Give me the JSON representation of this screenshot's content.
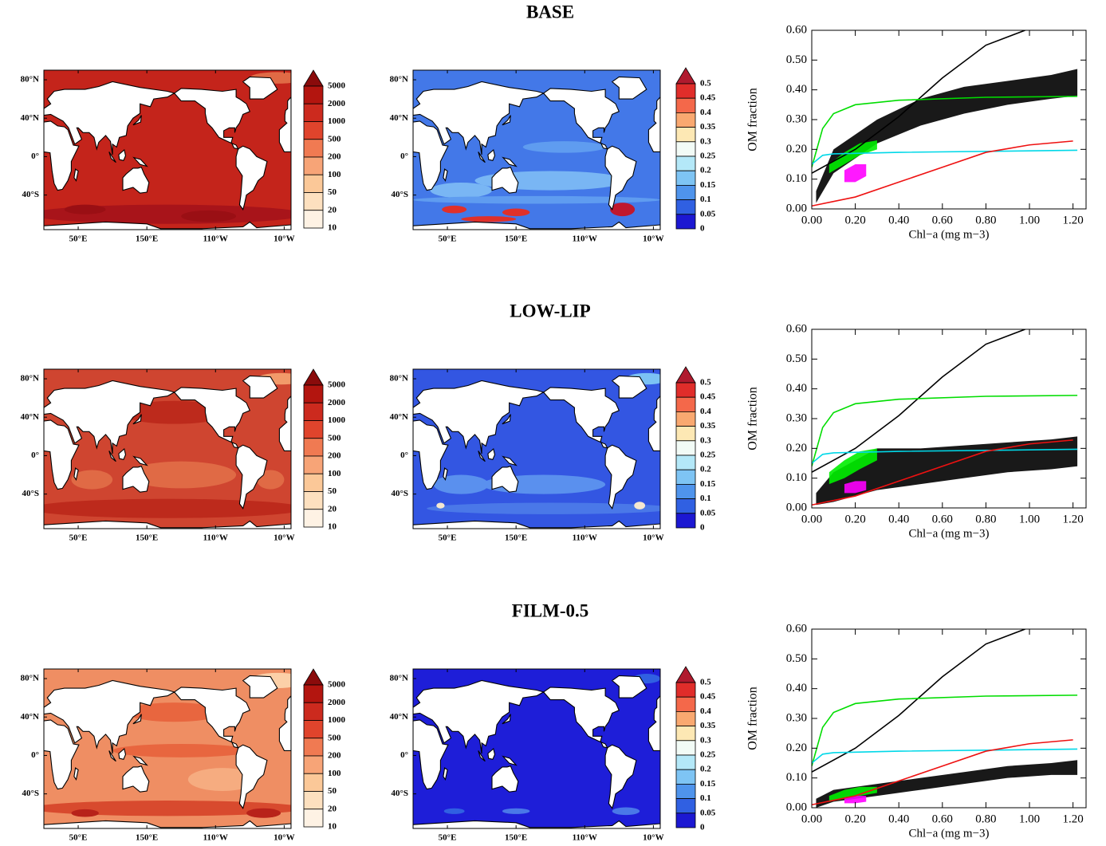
{
  "map_axes": {
    "lat_labels": [
      "80°N",
      "40°N",
      "0°",
      "40°S"
    ],
    "lon_labels": [
      "50°E",
      "150°E",
      "110°W",
      "10°W"
    ]
  },
  "colorbars": [
    {
      "labels": [
        5000,
        2000,
        1000,
        500,
        200,
        100,
        50,
        20,
        10
      ],
      "colors": [
        "#b3150f",
        "#cc2a1e",
        "#e0442c",
        "#f07a52",
        "#f7a477",
        "#fbc898",
        "#fde0bf",
        "#fef2e4"
      ],
      "extend_color": "#8a0b0b"
    },
    {
      "labels": [
        0.5,
        0.45,
        0.4,
        0.35,
        0.3,
        0.25,
        0.2,
        0.15,
        0.1,
        0.05,
        0
      ],
      "colors": [
        "#e02d2a",
        "#f4684a",
        "#f9a870",
        "#fde8b4",
        "#f2fbf6",
        "#b4e8f8",
        "#7ec4f4",
        "#4f94ec",
        "#3060e2",
        "#1c18d2"
      ],
      "extend_color": "#b01a2e"
    }
  ],
  "chart_data": [
    {
      "type": "line",
      "title": "BASE",
      "xlabel": "Chl−a (mg m−3)",
      "ylabel": "OM fraction",
      "xlim": [
        0,
        1.26
      ],
      "ylim": [
        0,
        0.6
      ],
      "xticks": [
        {
          "value": 0,
          "label": "0.00"
        },
        {
          "value": 0.2,
          "label": "0.20"
        },
        {
          "value": 0.4,
          "label": "0.40"
        },
        {
          "value": 0.6,
          "label": "0.60"
        },
        {
          "value": 0.8,
          "label": "0.80"
        },
        {
          "value": 1.0,
          "label": "1.00"
        },
        {
          "value": 1.2,
          "label": "1.20"
        }
      ],
      "yticks": [
        {
          "value": 0,
          "label": "0.00"
        },
        {
          "value": 0.1,
          "label": "0.10"
        },
        {
          "value": 0.2,
          "label": "0.20"
        },
        {
          "value": 0.3,
          "label": "0.30"
        },
        {
          "value": 0.4,
          "label": "0.40"
        },
        {
          "value": 0.5,
          "label": "0.50"
        },
        {
          "value": 0.6,
          "label": "0.60"
        }
      ],
      "clouds": [
        {
          "color": "#000000",
          "x": [
            0.02,
            0.1,
            0.3,
            0.5,
            0.7,
            0.9,
            1.1,
            1.22
          ],
          "lower": [
            0.02,
            0.12,
            0.22,
            0.28,
            0.32,
            0.35,
            0.37,
            0.38
          ],
          "upper": [
            0.06,
            0.2,
            0.3,
            0.37,
            0.41,
            0.43,
            0.45,
            0.47
          ]
        },
        {
          "color": "#00ee00",
          "x": [
            0.08,
            0.15,
            0.22,
            0.3
          ],
          "lower": [
            0.12,
            0.15,
            0.18,
            0.2
          ],
          "upper": [
            0.15,
            0.19,
            0.22,
            0.23
          ]
        },
        {
          "color": "#ff00ff",
          "x": [
            0.15,
            0.2,
            0.25
          ],
          "lower": [
            0.09,
            0.09,
            0.11
          ],
          "upper": [
            0.13,
            0.15,
            0.15
          ]
        }
      ],
      "series": [
        {
          "color": "#000000",
          "x": [
            0,
            0.2,
            0.4,
            0.6,
            0.8,
            0.98
          ],
          "values": [
            0.12,
            0.2,
            0.31,
            0.44,
            0.55,
            0.6
          ]
        },
        {
          "color": "#00dd00",
          "x": [
            0,
            0.05,
            0.1,
            0.2,
            0.4,
            0.8,
            1.22
          ],
          "values": [
            0.14,
            0.27,
            0.32,
            0.35,
            0.365,
            0.375,
            0.378
          ]
        },
        {
          "color": "#00d8e8",
          "x": [
            0,
            0.05,
            0.1,
            0.4,
            1.22
          ],
          "values": [
            0.15,
            0.18,
            0.185,
            0.19,
            0.197
          ]
        },
        {
          "color": "#ee1111",
          "x": [
            0,
            0.2,
            0.4,
            0.6,
            0.8,
            1.0,
            1.2
          ],
          "values": [
            0.01,
            0.04,
            0.09,
            0.14,
            0.19,
            0.215,
            0.228
          ]
        }
      ]
    },
    {
      "type": "line",
      "title": "LOW-LIP",
      "xlabel": "Chl−a (mg m−3)",
      "ylabel": "OM fraction",
      "xlim": [
        0,
        1.26
      ],
      "ylim": [
        0,
        0.6
      ],
      "xticks": [
        {
          "value": 0,
          "label": "0.00"
        },
        {
          "value": 0.2,
          "label": "0.20"
        },
        {
          "value": 0.4,
          "label": "0.40"
        },
        {
          "value": 0.6,
          "label": "0.60"
        },
        {
          "value": 0.8,
          "label": "0.80"
        },
        {
          "value": 1.0,
          "label": "1.00"
        },
        {
          "value": 1.2,
          "label": "1.20"
        }
      ],
      "yticks": [
        {
          "value": 0,
          "label": "0.00"
        },
        {
          "value": 0.1,
          "label": "0.10"
        },
        {
          "value": 0.2,
          "label": "0.20"
        },
        {
          "value": 0.3,
          "label": "0.30"
        },
        {
          "value": 0.4,
          "label": "0.40"
        },
        {
          "value": 0.5,
          "label": "0.50"
        },
        {
          "value": 0.6,
          "label": "0.60"
        }
      ],
      "clouds": [
        {
          "color": "#000000",
          "x": [
            0.02,
            0.1,
            0.3,
            0.5,
            0.7,
            0.9,
            1.1,
            1.22
          ],
          "lower": [
            0.01,
            0.02,
            0.06,
            0.08,
            0.1,
            0.12,
            0.13,
            0.14
          ],
          "upper": [
            0.05,
            0.12,
            0.2,
            0.2,
            0.21,
            0.22,
            0.23,
            0.24
          ]
        },
        {
          "color": "#00ee00",
          "x": [
            0.08,
            0.15,
            0.22,
            0.3
          ],
          "lower": [
            0.08,
            0.1,
            0.13,
            0.16
          ],
          "upper": [
            0.12,
            0.16,
            0.19,
            0.2
          ]
        },
        {
          "color": "#ff00ff",
          "x": [
            0.15,
            0.2,
            0.25
          ],
          "lower": [
            0.05,
            0.05,
            0.06
          ],
          "upper": [
            0.08,
            0.09,
            0.09
          ]
        }
      ],
      "series": [
        {
          "color": "#000000",
          "x": [
            0,
            0.2,
            0.4,
            0.6,
            0.8,
            0.98
          ],
          "values": [
            0.12,
            0.2,
            0.31,
            0.44,
            0.55,
            0.6
          ]
        },
        {
          "color": "#00dd00",
          "x": [
            0,
            0.05,
            0.1,
            0.2,
            0.4,
            0.8,
            1.22
          ],
          "values": [
            0.14,
            0.27,
            0.32,
            0.35,
            0.365,
            0.375,
            0.378
          ]
        },
        {
          "color": "#00d8e8",
          "x": [
            0,
            0.05,
            0.1,
            0.4,
            1.22
          ],
          "values": [
            0.15,
            0.18,
            0.185,
            0.19,
            0.197
          ]
        },
        {
          "color": "#ee1111",
          "x": [
            0,
            0.2,
            0.4,
            0.6,
            0.8,
            1.0,
            1.2
          ],
          "values": [
            0.01,
            0.04,
            0.09,
            0.14,
            0.19,
            0.215,
            0.228
          ]
        }
      ]
    },
    {
      "type": "line",
      "title": "FILM-0.5",
      "xlabel": "Chl−a (mg m−3)",
      "ylabel": "OM fraction",
      "xlim": [
        0,
        1.26
      ],
      "ylim": [
        0,
        0.6
      ],
      "xticks": [
        {
          "value": 0,
          "label": "0.00"
        },
        {
          "value": 0.2,
          "label": "0.20"
        },
        {
          "value": 0.4,
          "label": "0.40"
        },
        {
          "value": 0.6,
          "label": "0.60"
        },
        {
          "value": 0.8,
          "label": "0.80"
        },
        {
          "value": 1.0,
          "label": "1.00"
        },
        {
          "value": 1.2,
          "label": "1.20"
        }
      ],
      "yticks": [
        {
          "value": 0,
          "label": "0.00"
        },
        {
          "value": 0.1,
          "label": "0.10"
        },
        {
          "value": 0.2,
          "label": "0.20"
        },
        {
          "value": 0.3,
          "label": "0.30"
        },
        {
          "value": 0.4,
          "label": "0.40"
        },
        {
          "value": 0.5,
          "label": "0.50"
        },
        {
          "value": 0.6,
          "label": "0.60"
        }
      ],
      "clouds": [
        {
          "color": "#000000",
          "x": [
            0.02,
            0.1,
            0.3,
            0.5,
            0.7,
            0.9,
            1.1,
            1.22
          ],
          "lower": [
            0.0,
            0.02,
            0.04,
            0.06,
            0.08,
            0.1,
            0.11,
            0.11
          ],
          "upper": [
            0.03,
            0.06,
            0.08,
            0.1,
            0.12,
            0.14,
            0.15,
            0.16
          ]
        },
        {
          "color": "#00ee00",
          "x": [
            0.08,
            0.15,
            0.22,
            0.3
          ],
          "lower": [
            0.02,
            0.03,
            0.04,
            0.05
          ],
          "upper": [
            0.04,
            0.06,
            0.07,
            0.07
          ]
        },
        {
          "color": "#ff00ff",
          "x": [
            0.15,
            0.2,
            0.25
          ],
          "lower": [
            0.015,
            0.015,
            0.02
          ],
          "upper": [
            0.035,
            0.04,
            0.04
          ]
        }
      ],
      "series": [
        {
          "color": "#000000",
          "x": [
            0,
            0.2,
            0.4,
            0.6,
            0.8,
            0.98
          ],
          "values": [
            0.12,
            0.2,
            0.31,
            0.44,
            0.55,
            0.6
          ]
        },
        {
          "color": "#00dd00",
          "x": [
            0,
            0.05,
            0.1,
            0.2,
            0.4,
            0.8,
            1.22
          ],
          "values": [
            0.14,
            0.27,
            0.32,
            0.35,
            0.365,
            0.375,
            0.378
          ]
        },
        {
          "color": "#00d8e8",
          "x": [
            0,
            0.05,
            0.1,
            0.4,
            1.22
          ],
          "values": [
            0.15,
            0.18,
            0.185,
            0.19,
            0.197
          ]
        },
        {
          "color": "#ee1111",
          "x": [
            0,
            0.2,
            0.4,
            0.6,
            0.8,
            1.0,
            1.2
          ],
          "values": [
            0.01,
            0.04,
            0.09,
            0.14,
            0.19,
            0.215,
            0.228
          ]
        }
      ]
    }
  ]
}
